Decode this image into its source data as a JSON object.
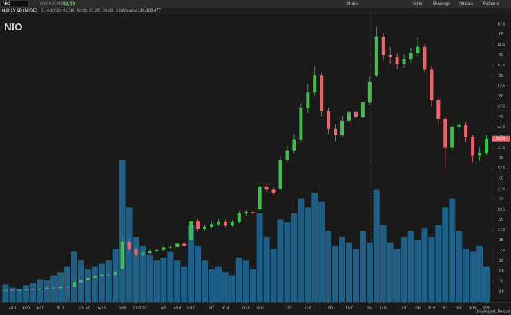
{
  "toolbar": {
    "symbol": "NIO",
    "description": "NIO INC ADR",
    "last": "39.66",
    "buttons": [
      "Share",
      "Style",
      "Drawings",
      "Studies",
      "Patterns"
    ]
  },
  "info_bar": {
    "label": "NIO 1Y 1D (NYSE)",
    "fields": [
      "D: 4/1/21",
      "O: 41.56",
      "H: 42.08",
      "L: 39.27",
      "C: 39.63",
      "R: 2.81"
    ],
    "volume_label": "Volume",
    "volume": "116,303,477"
  },
  "status": "Drawing set: Default",
  "chart_data": {
    "type": "candlestick",
    "title": "NIO",
    "categories": [
      null,
      "4/13",
      null,
      "4/20",
      null,
      "4/27",
      null,
      null,
      "5/11",
      null,
      null,
      "6/1",
      "6/8",
      null,
      "6/15",
      null,
      null,
      "6/29",
      null,
      "7/13",
      "7/20",
      null,
      null,
      "8/3",
      null,
      "8/10",
      null,
      "8/17",
      null,
      null,
      "9/7",
      null,
      "9/14",
      null,
      null,
      "9/28",
      null,
      "10/12",
      null,
      null,
      null,
      "11/2",
      null,
      null,
      "11/9",
      null,
      null,
      "11/30",
      null,
      null,
      "12/7",
      null,
      null,
      "1/4",
      null,
      "1/11",
      null,
      null,
      "2/1",
      null,
      "2/8",
      null,
      "2/15",
      null,
      "3/1",
      null,
      "3/8",
      null,
      "3/15",
      null,
      "3/29"
    ],
    "open": [
      2.8,
      2.9,
      2.8,
      2.9,
      3.1,
      3.0,
      3.2,
      3.4,
      3.3,
      3.6,
      3.6,
      4.8,
      5.3,
      5.8,
      6.2,
      6.6,
      6.5,
      8.0,
      14.5,
      12.8,
      11.5,
      11.9,
      12.3,
      12.6,
      13.2,
      13.4,
      14.2,
      15.0,
      19.6,
      17.8,
      18.2,
      18.9,
      19.5,
      18.6,
      19.4,
      21.5,
      21.8,
      22.5,
      28.0,
      27.3,
      27.5,
      34.5,
      36.8,
      39.5,
      47.0,
      51.0,
      55.0,
      46.5,
      42.0,
      40.5,
      44.0,
      46.2,
      44.8,
      48.5,
      55.0,
      64.5,
      60.0,
      59.5,
      57.8,
      59.0,
      60.5,
      62.0,
      56.5,
      49.0,
      44.5,
      37.5,
      42.5,
      43.0,
      40.0,
      35.5,
      36.2
    ],
    "high": [
      3.0,
      3.0,
      3.0,
      3.2,
      3.2,
      3.3,
      3.5,
      3.5,
      3.7,
      3.8,
      5.0,
      5.5,
      6.0,
      6.4,
      6.9,
      6.9,
      7.5,
      15.8,
      15.2,
      13.1,
      12.3,
      12.7,
      13.0,
      13.6,
      13.9,
      14.6,
      14.5,
      20.5,
      20.1,
      18.8,
      19.5,
      20.2,
      19.9,
      19.9,
      22.0,
      22.4,
      22.3,
      28.9,
      29.0,
      27.9,
      35.4,
      38.0,
      40.7,
      48.3,
      53.0,
      57.2,
      55.8,
      47.2,
      43.1,
      45.2,
      47.5,
      47.0,
      49.6,
      54.8,
      66.9,
      65.3,
      62.0,
      60.4,
      60.2,
      61.8,
      64.3,
      62.8,
      57.2,
      49.8,
      45.2,
      43.5,
      45.0,
      43.8,
      40.6,
      37.5,
      40.6
    ],
    "low": [
      2.7,
      2.7,
      2.7,
      2.8,
      2.9,
      2.9,
      3.1,
      3.2,
      3.2,
      3.4,
      3.5,
      4.7,
      5.1,
      5.6,
      6.0,
      6.2,
      6.3,
      7.8,
      12.3,
      11.0,
      11.1,
      11.6,
      12.0,
      12.3,
      12.8,
      13.1,
      13.2,
      14.8,
      17.2,
      17.3,
      17.9,
      18.5,
      18.1,
      18.3,
      19.1,
      21.0,
      21.1,
      22.2,
      26.6,
      25.8,
      27.1,
      33.8,
      36.0,
      39.0,
      46.0,
      50.1,
      45.0,
      40.8,
      39.0,
      40.0,
      43.2,
      43.9,
      44.0,
      47.9,
      54.6,
      58.8,
      57.9,
      56.5,
      56.9,
      58.2,
      59.6,
      55.6,
      47.5,
      43.1,
      32.0,
      36.8,
      41.5,
      38.8,
      34.0,
      34.2,
      35.8
    ],
    "close": [
      2.9,
      2.8,
      2.9,
      3.1,
      3.0,
      3.2,
      3.4,
      3.3,
      3.6,
      3.5,
      4.8,
      5.3,
      5.8,
      6.2,
      6.6,
      6.5,
      7.2,
      14.5,
      12.8,
      11.5,
      11.9,
      12.3,
      12.6,
      13.2,
      13.4,
      14.2,
      13.6,
      19.6,
      17.8,
      18.2,
      18.9,
      19.5,
      18.6,
      19.4,
      21.5,
      21.8,
      21.6,
      28.0,
      27.3,
      26.5,
      34.5,
      36.8,
      39.5,
      47.0,
      51.0,
      55.0,
      46.5,
      42.0,
      40.5,
      44.0,
      46.2,
      44.8,
      48.5,
      53.5,
      64.5,
      60.0,
      59.5,
      57.8,
      59.0,
      60.5,
      62.0,
      56.5,
      49.0,
      44.5,
      37.5,
      42.5,
      43.0,
      40.0,
      35.5,
      36.2,
      39.66
    ],
    "volume": [
      30,
      24,
      22,
      28,
      32,
      38,
      36,
      45,
      50,
      60,
      85,
      70,
      55,
      60,
      65,
      70,
      90,
      240,
      160,
      110,
      95,
      80,
      70,
      75,
      85,
      70,
      60,
      130,
      95,
      70,
      55,
      60,
      50,
      45,
      75,
      70,
      55,
      150,
      110,
      90,
      140,
      135,
      150,
      175,
      160,
      185,
      170,
      120,
      95,
      110,
      100,
      90,
      120,
      100,
      190,
      130,
      100,
      90,
      110,
      120,
      105,
      125,
      110,
      130,
      160,
      175,
      120,
      90,
      85,
      95,
      60
    ],
    "up_color": "#3fbf4a",
    "down_color": "#f0626c",
    "volume_color": "#1d5f86",
    "ylim": [
      0,
      70
    ],
    "yticks": [
      2.5,
      5,
      7.5,
      10,
      12.5,
      15,
      17.5,
      20,
      22.5,
      25,
      27.5,
      30,
      32.5,
      35,
      37.5,
      40,
      42.5,
      45,
      47.5,
      50,
      52.5,
      55,
      57.5,
      60,
      62.5,
      65,
      67.5
    ],
    "grid": false
  }
}
